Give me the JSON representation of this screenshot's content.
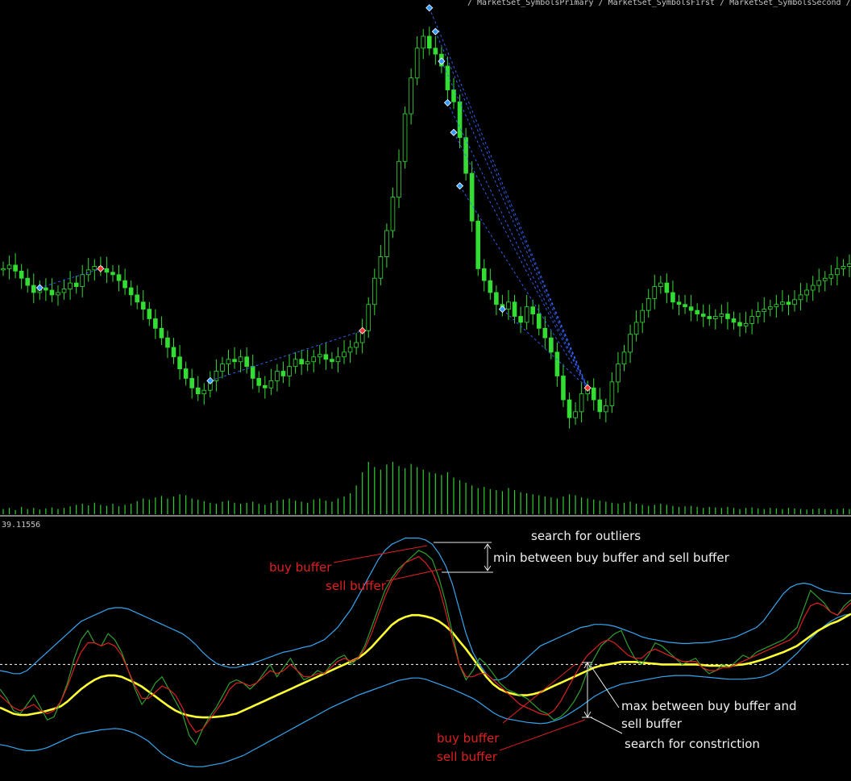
{
  "chart_data": [
    {
      "type": "candlestick",
      "title": "",
      "series": [
        {
          "name": "price",
          "values": [
            1.0,
            1.03,
            0.98,
            0.92,
            0.86,
            0.8,
            0.84,
            0.82,
            0.78,
            0.8,
            0.83,
            0.88,
            0.85,
            0.95,
            0.99,
            1.02,
            1.0,
            0.97,
            0.95,
            0.9,
            0.84,
            0.78,
            0.72,
            0.66,
            0.58,
            0.5,
            0.42,
            0.34,
            0.26,
            0.16,
            0.08,
            0.0,
            -0.05,
            -0.02,
            0.06,
            0.14,
            0.2,
            0.24,
            0.22,
            0.26,
            0.18,
            0.08,
            0.02,
            0.0,
            0.06,
            0.14,
            0.1,
            0.18,
            0.24,
            0.2,
            0.22,
            0.26,
            0.28,
            0.24,
            0.22,
            0.26,
            0.3,
            0.34,
            0.38,
            0.48,
            0.7,
            0.92,
            1.1,
            1.32,
            1.6,
            1.9,
            2.3,
            2.6,
            2.85,
            2.95,
            2.85,
            2.8,
            2.7,
            2.5,
            2.4,
            2.1,
            1.8,
            1.4,
            1.0,
            0.9,
            0.8,
            0.7,
            0.66,
            0.72,
            0.6,
            0.55,
            0.68,
            0.62,
            0.5,
            0.42,
            0.3,
            0.1,
            -0.1,
            -0.25,
            -0.2,
            -0.05,
            0.0,
            -0.1,
            -0.2,
            -0.15,
            0.05,
            0.2,
            0.3,
            0.45,
            0.55,
            0.65,
            0.75,
            0.85,
            0.88,
            0.8,
            0.72,
            0.7,
            0.68,
            0.65,
            0.62,
            0.6,
            0.58,
            0.6,
            0.62,
            0.58,
            0.55,
            0.52,
            0.54,
            0.6,
            0.64,
            0.66,
            0.68,
            0.7,
            0.72,
            0.7,
            0.74,
            0.78,
            0.82,
            0.86,
            0.9,
            0.92,
            0.95,
            1.0,
            1.02,
            1.04
          ]
        }
      ],
      "volume": [
        0.1,
        0.12,
        0.08,
        0.14,
        0.1,
        0.12,
        0.09,
        0.11,
        0.13,
        0.1,
        0.12,
        0.15,
        0.18,
        0.2,
        0.17,
        0.22,
        0.18,
        0.16,
        0.2,
        0.15,
        0.18,
        0.2,
        0.25,
        0.3,
        0.28,
        0.32,
        0.35,
        0.3,
        0.34,
        0.38,
        0.36,
        0.3,
        0.28,
        0.25,
        0.22,
        0.2,
        0.24,
        0.26,
        0.22,
        0.2,
        0.22,
        0.24,
        0.2,
        0.18,
        0.22,
        0.26,
        0.28,
        0.3,
        0.26,
        0.24,
        0.22,
        0.28,
        0.3,
        0.26,
        0.24,
        0.3,
        0.34,
        0.4,
        0.55,
        0.8,
        1.0,
        0.9,
        0.85,
        0.95,
        1.0,
        0.92,
        0.88,
        0.96,
        0.9,
        0.85,
        0.8,
        0.78,
        0.75,
        0.8,
        0.7,
        0.65,
        0.6,
        0.55,
        0.5,
        0.52,
        0.48,
        0.46,
        0.44,
        0.5,
        0.46,
        0.42,
        0.4,
        0.38,
        0.36,
        0.34,
        0.32,
        0.3,
        0.34,
        0.38,
        0.36,
        0.32,
        0.3,
        0.28,
        0.26,
        0.24,
        0.22,
        0.2,
        0.22,
        0.24,
        0.2,
        0.18,
        0.16,
        0.18,
        0.2,
        0.18,
        0.16,
        0.14,
        0.15,
        0.16,
        0.14,
        0.12,
        0.14,
        0.13,
        0.12,
        0.14,
        0.12,
        0.1,
        0.12,
        0.13,
        0.11,
        0.1,
        0.12,
        0.11,
        0.1,
        0.12,
        0.11,
        0.1,
        0.09,
        0.1,
        0.11,
        0.1,
        0.09,
        0.1,
        0.11,
        0.1
      ],
      "signals": [
        {
          "bar": 6,
          "kind": "buy"
        },
        {
          "bar": 16,
          "kind": "sell"
        },
        {
          "bar": 34,
          "kind": "buy"
        },
        {
          "bar": 59,
          "kind": "sell"
        },
        {
          "bar": 70,
          "kind": "buy"
        },
        {
          "bar": 71,
          "kind": "buy"
        },
        {
          "bar": 72,
          "kind": "buy"
        },
        {
          "bar": 73,
          "kind": "buy"
        },
        {
          "bar": 74,
          "kind": "buy"
        },
        {
          "bar": 75,
          "kind": "buy"
        },
        {
          "bar": 82,
          "kind": "buy"
        },
        {
          "bar": 96,
          "kind": "sell"
        }
      ]
    },
    {
      "type": "line",
      "title": "",
      "level_label": "39.11556",
      "series": [
        {
          "name": "buy buffer",
          "color": "#2e9e2e",
          "values": [
            -0.2,
            -0.35,
            -0.55,
            -0.6,
            -0.45,
            -0.3,
            -0.5,
            -0.7,
            -0.65,
            -0.4,
            -0.1,
            0.3,
            0.6,
            0.75,
            0.55,
            0.5,
            0.7,
            0.6,
            0.4,
            0.1,
            -0.2,
            -0.45,
            -0.3,
            -0.1,
            0.0,
            -0.2,
            -0.4,
            -0.6,
            -0.95,
            -1.1,
            -0.85,
            -0.65,
            -0.5,
            -0.3,
            -0.1,
            -0.05,
            -0.1,
            -0.2,
            -0.1,
            0.05,
            0.2,
            0.0,
            0.15,
            0.3,
            0.1,
            -0.05,
            0.0,
            0.1,
            0.05,
            0.2,
            0.3,
            0.35,
            0.2,
            0.3,
            0.5,
            0.8,
            1.1,
            1.4,
            1.6,
            1.75,
            1.85,
            1.95,
            2.05,
            2.0,
            1.9,
            1.6,
            1.2,
            0.7,
            0.2,
            -0.05,
            0.1,
            0.3,
            0.2,
            0.05,
            -0.1,
            -0.2,
            -0.25,
            -0.3,
            -0.35,
            -0.45,
            -0.55,
            -0.6,
            -0.7,
            -0.65,
            -0.55,
            -0.4,
            -0.2,
            0.1,
            0.3,
            0.5,
            0.6,
            0.7,
            0.75,
            0.5,
            0.3,
            0.2,
            0.35,
            0.55,
            0.5,
            0.4,
            0.3,
            0.2,
            0.25,
            0.3,
            0.15,
            0.05,
            0.1,
            0.2,
            0.15,
            0.25,
            0.35,
            0.3,
            0.4,
            0.45,
            0.5,
            0.55,
            0.6,
            0.7,
            0.8,
            1.1,
            1.4,
            1.3,
            1.2,
            1.05,
            1.0,
            1.15,
            1.25
          ]
        },
        {
          "name": "sell buffer",
          "color": "#e02020",
          "values": [
            -0.3,
            -0.4,
            -0.5,
            -0.55,
            -0.5,
            -0.45,
            -0.55,
            -0.6,
            -0.55,
            -0.4,
            -0.15,
            0.15,
            0.4,
            0.55,
            0.55,
            0.5,
            0.55,
            0.5,
            0.35,
            0.1,
            -0.15,
            -0.35,
            -0.35,
            -0.25,
            -0.15,
            -0.2,
            -0.3,
            -0.5,
            -0.75,
            -0.9,
            -0.85,
            -0.7,
            -0.55,
            -0.4,
            -0.2,
            -0.1,
            -0.1,
            -0.15,
            -0.1,
            0.0,
            0.1,
            0.05,
            0.1,
            0.2,
            0.1,
            0.0,
            0.0,
            0.05,
            0.05,
            0.15,
            0.25,
            0.3,
            0.25,
            0.3,
            0.45,
            0.7,
            1.0,
            1.3,
            1.55,
            1.7,
            1.85,
            1.9,
            1.95,
            1.85,
            1.7,
            1.45,
            1.05,
            0.6,
            0.2,
            0.0,
            0.0,
            0.05,
            0.05,
            -0.05,
            -0.15,
            -0.25,
            -0.35,
            -0.45,
            -0.5,
            -0.55,
            -0.6,
            -0.62,
            -0.55,
            -0.4,
            -0.2,
            0.0,
            0.2,
            0.35,
            0.45,
            0.55,
            0.6,
            0.55,
            0.45,
            0.35,
            0.3,
            0.3,
            0.4,
            0.45,
            0.4,
            0.35,
            0.3,
            0.25,
            0.25,
            0.25,
            0.15,
            0.1,
            0.1,
            0.15,
            0.15,
            0.2,
            0.25,
            0.3,
            0.35,
            0.4,
            0.45,
            0.5,
            0.55,
            0.6,
            0.7,
            0.95,
            1.15,
            1.2,
            1.15,
            1.05,
            1.0,
            1.1,
            1.2
          ]
        },
        {
          "name": "middle",
          "color": "#ffff33",
          "values": [
            -0.5,
            -0.55,
            -0.6,
            -0.62,
            -0.62,
            -0.6,
            -0.58,
            -0.55,
            -0.52,
            -0.48,
            -0.4,
            -0.3,
            -0.2,
            -0.12,
            -0.05,
            0.0,
            0.02,
            0.02,
            0.0,
            -0.05,
            -0.1,
            -0.16,
            -0.24,
            -0.32,
            -0.4,
            -0.48,
            -0.55,
            -0.6,
            -0.63,
            -0.65,
            -0.66,
            -0.66,
            -0.65,
            -0.64,
            -0.62,
            -0.6,
            -0.55,
            -0.5,
            -0.45,
            -0.4,
            -0.35,
            -0.3,
            -0.25,
            -0.2,
            -0.15,
            -0.1,
            -0.05,
            0.0,
            0.05,
            0.1,
            0.15,
            0.2,
            0.25,
            0.3,
            0.38,
            0.48,
            0.6,
            0.72,
            0.84,
            0.92,
            0.97,
            1.0,
            1.0,
            0.98,
            0.95,
            0.9,
            0.82,
            0.72,
            0.58,
            0.45,
            0.3,
            0.15,
            0.0,
            -0.12,
            -0.2,
            -0.25,
            -0.28,
            -0.3,
            -0.3,
            -0.28,
            -0.25,
            -0.2,
            -0.15,
            -0.1,
            -0.05,
            0.0,
            0.05,
            0.1,
            0.15,
            0.18,
            0.2,
            0.22,
            0.24,
            0.24,
            0.24,
            0.23,
            0.22,
            0.21,
            0.2,
            0.2,
            0.2,
            0.2,
            0.2,
            0.2,
            0.19,
            0.18,
            0.18,
            0.18,
            0.18,
            0.19,
            0.2,
            0.22,
            0.25,
            0.28,
            0.32,
            0.36,
            0.4,
            0.45,
            0.5,
            0.58,
            0.66,
            0.74,
            0.8,
            0.86,
            0.9,
            0.96,
            1.02
          ]
        },
        {
          "name": "upper band",
          "color": "#35a6f0",
          "values": [
            0.1,
            0.08,
            0.05,
            0.05,
            0.1,
            0.2,
            0.3,
            0.4,
            0.5,
            0.6,
            0.7,
            0.8,
            0.9,
            0.95,
            1.0,
            1.05,
            1.1,
            1.12,
            1.12,
            1.1,
            1.05,
            1.0,
            0.95,
            0.9,
            0.85,
            0.8,
            0.75,
            0.7,
            0.62,
            0.52,
            0.4,
            0.3,
            0.22,
            0.18,
            0.15,
            0.15,
            0.18,
            0.2,
            0.24,
            0.28,
            0.32,
            0.36,
            0.4,
            0.42,
            0.45,
            0.48,
            0.5,
            0.55,
            0.6,
            0.7,
            0.8,
            0.95,
            1.1,
            1.3,
            1.5,
            1.7,
            1.9,
            2.05,
            2.15,
            2.2,
            2.25,
            2.25,
            2.25,
            2.22,
            2.15,
            2.0,
            1.8,
            1.5,
            1.1,
            0.7,
            0.4,
            0.2,
            0.05,
            -0.05,
            -0.05,
            0.0,
            0.1,
            0.2,
            0.3,
            0.4,
            0.5,
            0.55,
            0.6,
            0.65,
            0.7,
            0.75,
            0.8,
            0.82,
            0.85,
            0.85,
            0.84,
            0.82,
            0.78,
            0.74,
            0.7,
            0.65,
            0.62,
            0.6,
            0.58,
            0.56,
            0.55,
            0.54,
            0.54,
            0.55,
            0.55,
            0.56,
            0.58,
            0.6,
            0.62,
            0.65,
            0.7,
            0.75,
            0.8,
            0.9,
            1.05,
            1.2,
            1.35,
            1.45,
            1.5,
            1.52,
            1.5,
            1.45,
            1.4,
            1.38,
            1.36,
            1.35,
            1.35
          ]
        },
        {
          "name": "lower band",
          "color": "#35a6f0",
          "values": [
            -1.1,
            -1.12,
            -1.15,
            -1.18,
            -1.2,
            -1.2,
            -1.18,
            -1.15,
            -1.1,
            -1.05,
            -1.0,
            -0.95,
            -0.92,
            -0.9,
            -0.88,
            -0.86,
            -0.85,
            -0.84,
            -0.85,
            -0.88,
            -0.92,
            -0.98,
            -1.05,
            -1.15,
            -1.25,
            -1.32,
            -1.38,
            -1.42,
            -1.45,
            -1.46,
            -1.46,
            -1.44,
            -1.42,
            -1.4,
            -1.36,
            -1.32,
            -1.28,
            -1.22,
            -1.16,
            -1.1,
            -1.04,
            -0.98,
            -0.92,
            -0.86,
            -0.8,
            -0.74,
            -0.68,
            -0.62,
            -0.56,
            -0.5,
            -0.45,
            -0.4,
            -0.35,
            -0.3,
            -0.26,
            -0.22,
            -0.18,
            -0.14,
            -0.1,
            -0.06,
            -0.04,
            -0.02,
            -0.02,
            -0.04,
            -0.08,
            -0.12,
            -0.16,
            -0.2,
            -0.25,
            -0.3,
            -0.35,
            -0.42,
            -0.5,
            -0.58,
            -0.64,
            -0.68,
            -0.7,
            -0.72,
            -0.74,
            -0.75,
            -0.76,
            -0.75,
            -0.72,
            -0.68,
            -0.62,
            -0.55,
            -0.48,
            -0.4,
            -0.32,
            -0.26,
            -0.2,
            -0.16,
            -0.12,
            -0.1,
            -0.08,
            -0.06,
            -0.04,
            -0.02,
            0.0,
            0.01,
            0.02,
            0.02,
            0.02,
            0.01,
            0.0,
            -0.01,
            -0.02,
            -0.03,
            -0.04,
            -0.04,
            -0.04,
            -0.03,
            -0.02,
            0.0,
            0.04,
            0.1,
            0.18,
            0.28,
            0.38,
            0.5,
            0.62,
            0.72,
            0.82,
            0.9,
            0.96,
            1.0,
            1.02
          ]
        }
      ]
    }
  ],
  "annotations": {
    "outliers": "search for outliers",
    "min_between": "min between buy buffer and sell buffer",
    "buy_top": "buy buffer",
    "sell_top": "sell buffer",
    "max_line1": "max between buy buffer and",
    "max_line2": "sell buffer",
    "constriction": "search for constriction",
    "buy_bottom": "buy buffer",
    "sell_bottom": "sell buffer"
  },
  "header_text": "/ MarketSet_SymbolsPrimary / MarketSet_SymbolsFirst / MarketSet_SymbolsSecond / Expert_Properties   Expert"
}
